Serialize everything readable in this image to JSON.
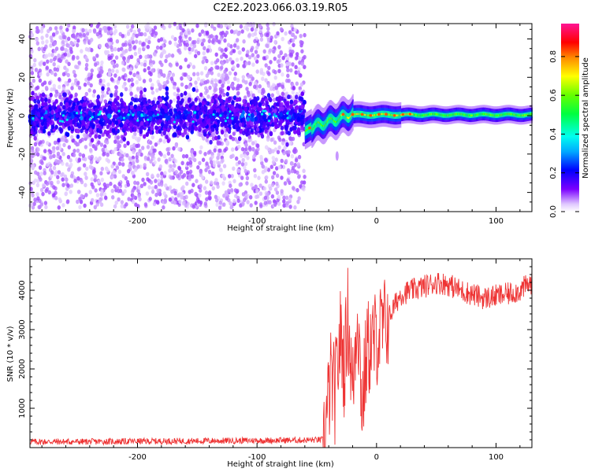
{
  "title": "C2E2.2023.066.03.19.R05",
  "chart_data": [
    {
      "type": "heatmap",
      "xlabel": "Height of straight line (km)",
      "ylabel": "Frequency (Hz)",
      "xlim": [
        -290,
        130
      ],
      "ylim": [
        -50,
        48
      ],
      "xticks": [
        -200,
        -100,
        0,
        100
      ],
      "yticks": [
        -40,
        -20,
        0,
        20,
        40
      ],
      "colorbar": {
        "label": "Normalized spectral amplitude",
        "range": [
          0,
          0.97
        ],
        "ticks": [
          "0.0",
          "0.2",
          "0.4",
          "0.6",
          "0.8"
        ],
        "colormap": "rainbow"
      },
      "regions": [
        {
          "x_range": [
            -290,
            -60
          ],
          "description": "broadband noise",
          "y_spread": 48,
          "core_band": 5
        },
        {
          "x_range": [
            -60,
            130
          ],
          "description": "narrow signal near 0 Hz",
          "center_hz": [
            -8,
            0.5
          ],
          "peak_amplitude": 0.8
        }
      ]
    },
    {
      "type": "line",
      "xlabel": "Height of straight line (km)",
      "ylabel": "SNR (10 * v/v)",
      "xlim": [
        -290,
        130
      ],
      "ylim": [
        0,
        4800
      ],
      "xticks": [
        -200,
        -100,
        0,
        100
      ],
      "yticks": [
        1000,
        2000,
        3000,
        4000
      ],
      "series": [
        {
          "color": "#ee3333",
          "x": [
            -290,
            -250,
            -200,
            -150,
            -100,
            -60,
            -45,
            -42,
            -38,
            -35,
            -30,
            -27,
            -24,
            -20,
            -16,
            -12,
            -8,
            -4,
            0,
            5,
            10,
            15,
            20,
            30,
            40,
            50,
            60,
            70,
            80,
            90,
            100,
            110,
            120,
            130
          ],
          "y": [
            150,
            150,
            160,
            170,
            180,
            190,
            200,
            700,
            1800,
            1300,
            2900,
            2000,
            3400,
            1400,
            3600,
            1000,
            2500,
            2600,
            2800,
            3000,
            3300,
            3600,
            3900,
            4000,
            4100,
            4200,
            4150,
            4000,
            3900,
            3800,
            3850,
            3900,
            4000,
            4200
          ]
        }
      ]
    }
  ]
}
